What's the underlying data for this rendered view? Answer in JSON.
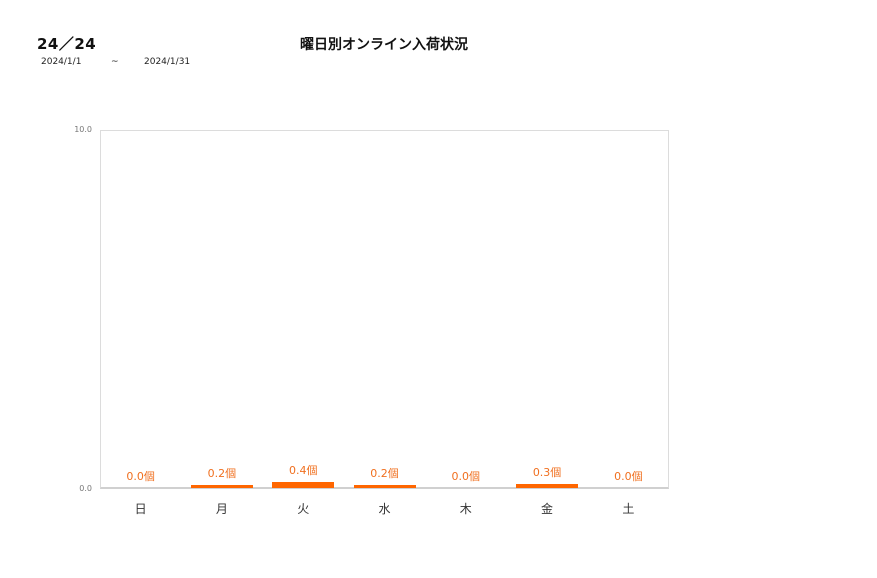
{
  "header": {
    "page_code": "24／24",
    "date_from": "2024/1/1",
    "date_separator": "~",
    "date_to": "2024/1/31",
    "title": "曜日別オンライン入荷状況"
  },
  "colors": {
    "bar": "#ff6600",
    "label": "#f07020",
    "axis": "#d0d0d0"
  },
  "chart_data": {
    "type": "bar",
    "title": "曜日別オンライン入荷状況",
    "categories": [
      "日",
      "月",
      "火",
      "水",
      "木",
      "金",
      "土"
    ],
    "values": [
      0.0,
      0.2,
      0.4,
      0.2,
      0.0,
      0.3,
      0.0
    ],
    "data_labels": [
      "0.0個",
      "0.2個",
      "0.4個",
      "0.2個",
      "0.0個",
      "0.3個",
      "0.0個"
    ],
    "unit": "個",
    "xlabel": "",
    "ylabel": "",
    "ylim": [
      0,
      10
    ],
    "yticks": [
      "0.0",
      "10.0"
    ],
    "grid": false,
    "legend": false
  }
}
